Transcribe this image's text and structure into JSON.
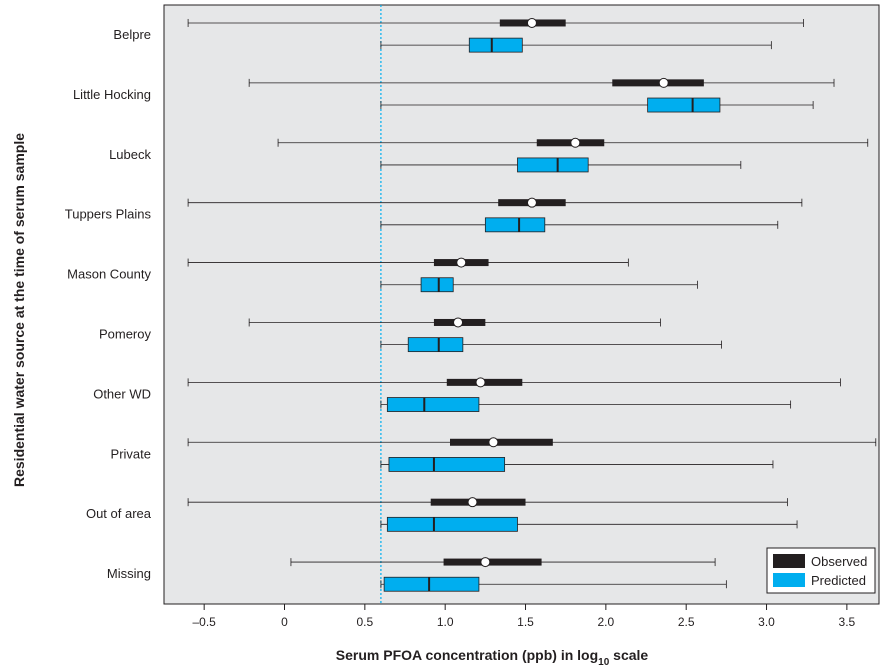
{
  "chart_data": {
    "type": "boxplot",
    "title": "",
    "xlabel_main": "Serum PFOA concentration (ppb) in log",
    "xlabel_sub": "10",
    "xlabel_tail": " scale",
    "ylabel": "Residential water source at the time of serum sample",
    "xlim": [
      -0.75,
      3.7
    ],
    "xticks": [
      -0.5,
      0,
      0.5,
      1.0,
      1.5,
      2.0,
      2.5,
      3.0,
      3.5
    ],
    "xtick_labels": [
      "–0.5",
      "0",
      "0.5",
      "1.0",
      "1.5",
      "2.0",
      "2.5",
      "3.0",
      "3.5"
    ],
    "reference_line_x": 0.6,
    "legend": {
      "position": "bottom-right",
      "entries": [
        {
          "label": "Observed",
          "color": "#231f20"
        },
        {
          "label": "Predicted",
          "color": "#00aeef"
        }
      ]
    },
    "colors": {
      "background": "#e6e7e8",
      "observed": "#231f20",
      "predicted": "#00aeef",
      "reference_line": "#00aeef"
    },
    "categories": [
      "Belpre",
      "Little Hocking",
      "Lubeck",
      "Tuppers Plains",
      "Mason County",
      "Pomeroy",
      "Other WD",
      "Private",
      "Out of area",
      "Missing"
    ],
    "observed": [
      {
        "min": -0.6,
        "q1": 1.34,
        "median": 1.54,
        "q3": 1.75,
        "max": 3.23
      },
      {
        "min": -0.22,
        "q1": 2.04,
        "median": 2.36,
        "q3": 2.61,
        "max": 3.42
      },
      {
        "min": -0.04,
        "q1": 1.57,
        "median": 1.81,
        "q3": 1.99,
        "max": 3.63
      },
      {
        "min": -0.6,
        "q1": 1.33,
        "median": 1.54,
        "q3": 1.75,
        "max": 3.22
      },
      {
        "min": -0.6,
        "q1": 0.93,
        "median": 1.1,
        "q3": 1.27,
        "max": 2.14
      },
      {
        "min": -0.22,
        "q1": 0.93,
        "median": 1.08,
        "q3": 1.25,
        "max": 2.34
      },
      {
        "min": -0.6,
        "q1": 1.01,
        "median": 1.22,
        "q3": 1.48,
        "max": 3.46
      },
      {
        "min": -0.6,
        "q1": 1.03,
        "median": 1.3,
        "q3": 1.67,
        "max": 3.68
      },
      {
        "min": -0.6,
        "q1": 0.91,
        "median": 1.17,
        "q3": 1.5,
        "max": 3.13
      },
      {
        "min": 0.04,
        "q1": 0.99,
        "median": 1.25,
        "q3": 1.6,
        "max": 2.68
      }
    ],
    "predicted": [
      {
        "min": 0.6,
        "q1": 1.15,
        "median": 1.29,
        "q3": 1.48,
        "max": 3.03
      },
      {
        "min": 0.6,
        "q1": 2.26,
        "median": 2.54,
        "q3": 2.71,
        "max": 3.29
      },
      {
        "min": 0.6,
        "q1": 1.45,
        "median": 1.7,
        "q3": 1.89,
        "max": 2.84
      },
      {
        "min": 0.6,
        "q1": 1.25,
        "median": 1.46,
        "q3": 1.62,
        "max": 3.07
      },
      {
        "min": 0.6,
        "q1": 0.85,
        "median": 0.96,
        "q3": 1.05,
        "max": 2.57
      },
      {
        "min": 0.6,
        "q1": 0.77,
        "median": 0.96,
        "q3": 1.11,
        "max": 2.72
      },
      {
        "min": 0.6,
        "q1": 0.64,
        "median": 0.87,
        "q3": 1.21,
        "max": 3.15
      },
      {
        "min": 0.6,
        "q1": 0.65,
        "median": 0.93,
        "q3": 1.37,
        "max": 3.04
      },
      {
        "min": 0.6,
        "q1": 0.64,
        "median": 0.93,
        "q3": 1.45,
        "max": 3.19
      },
      {
        "min": 0.6,
        "q1": 0.62,
        "median": 0.9,
        "q3": 1.21,
        "max": 2.75
      }
    ]
  }
}
